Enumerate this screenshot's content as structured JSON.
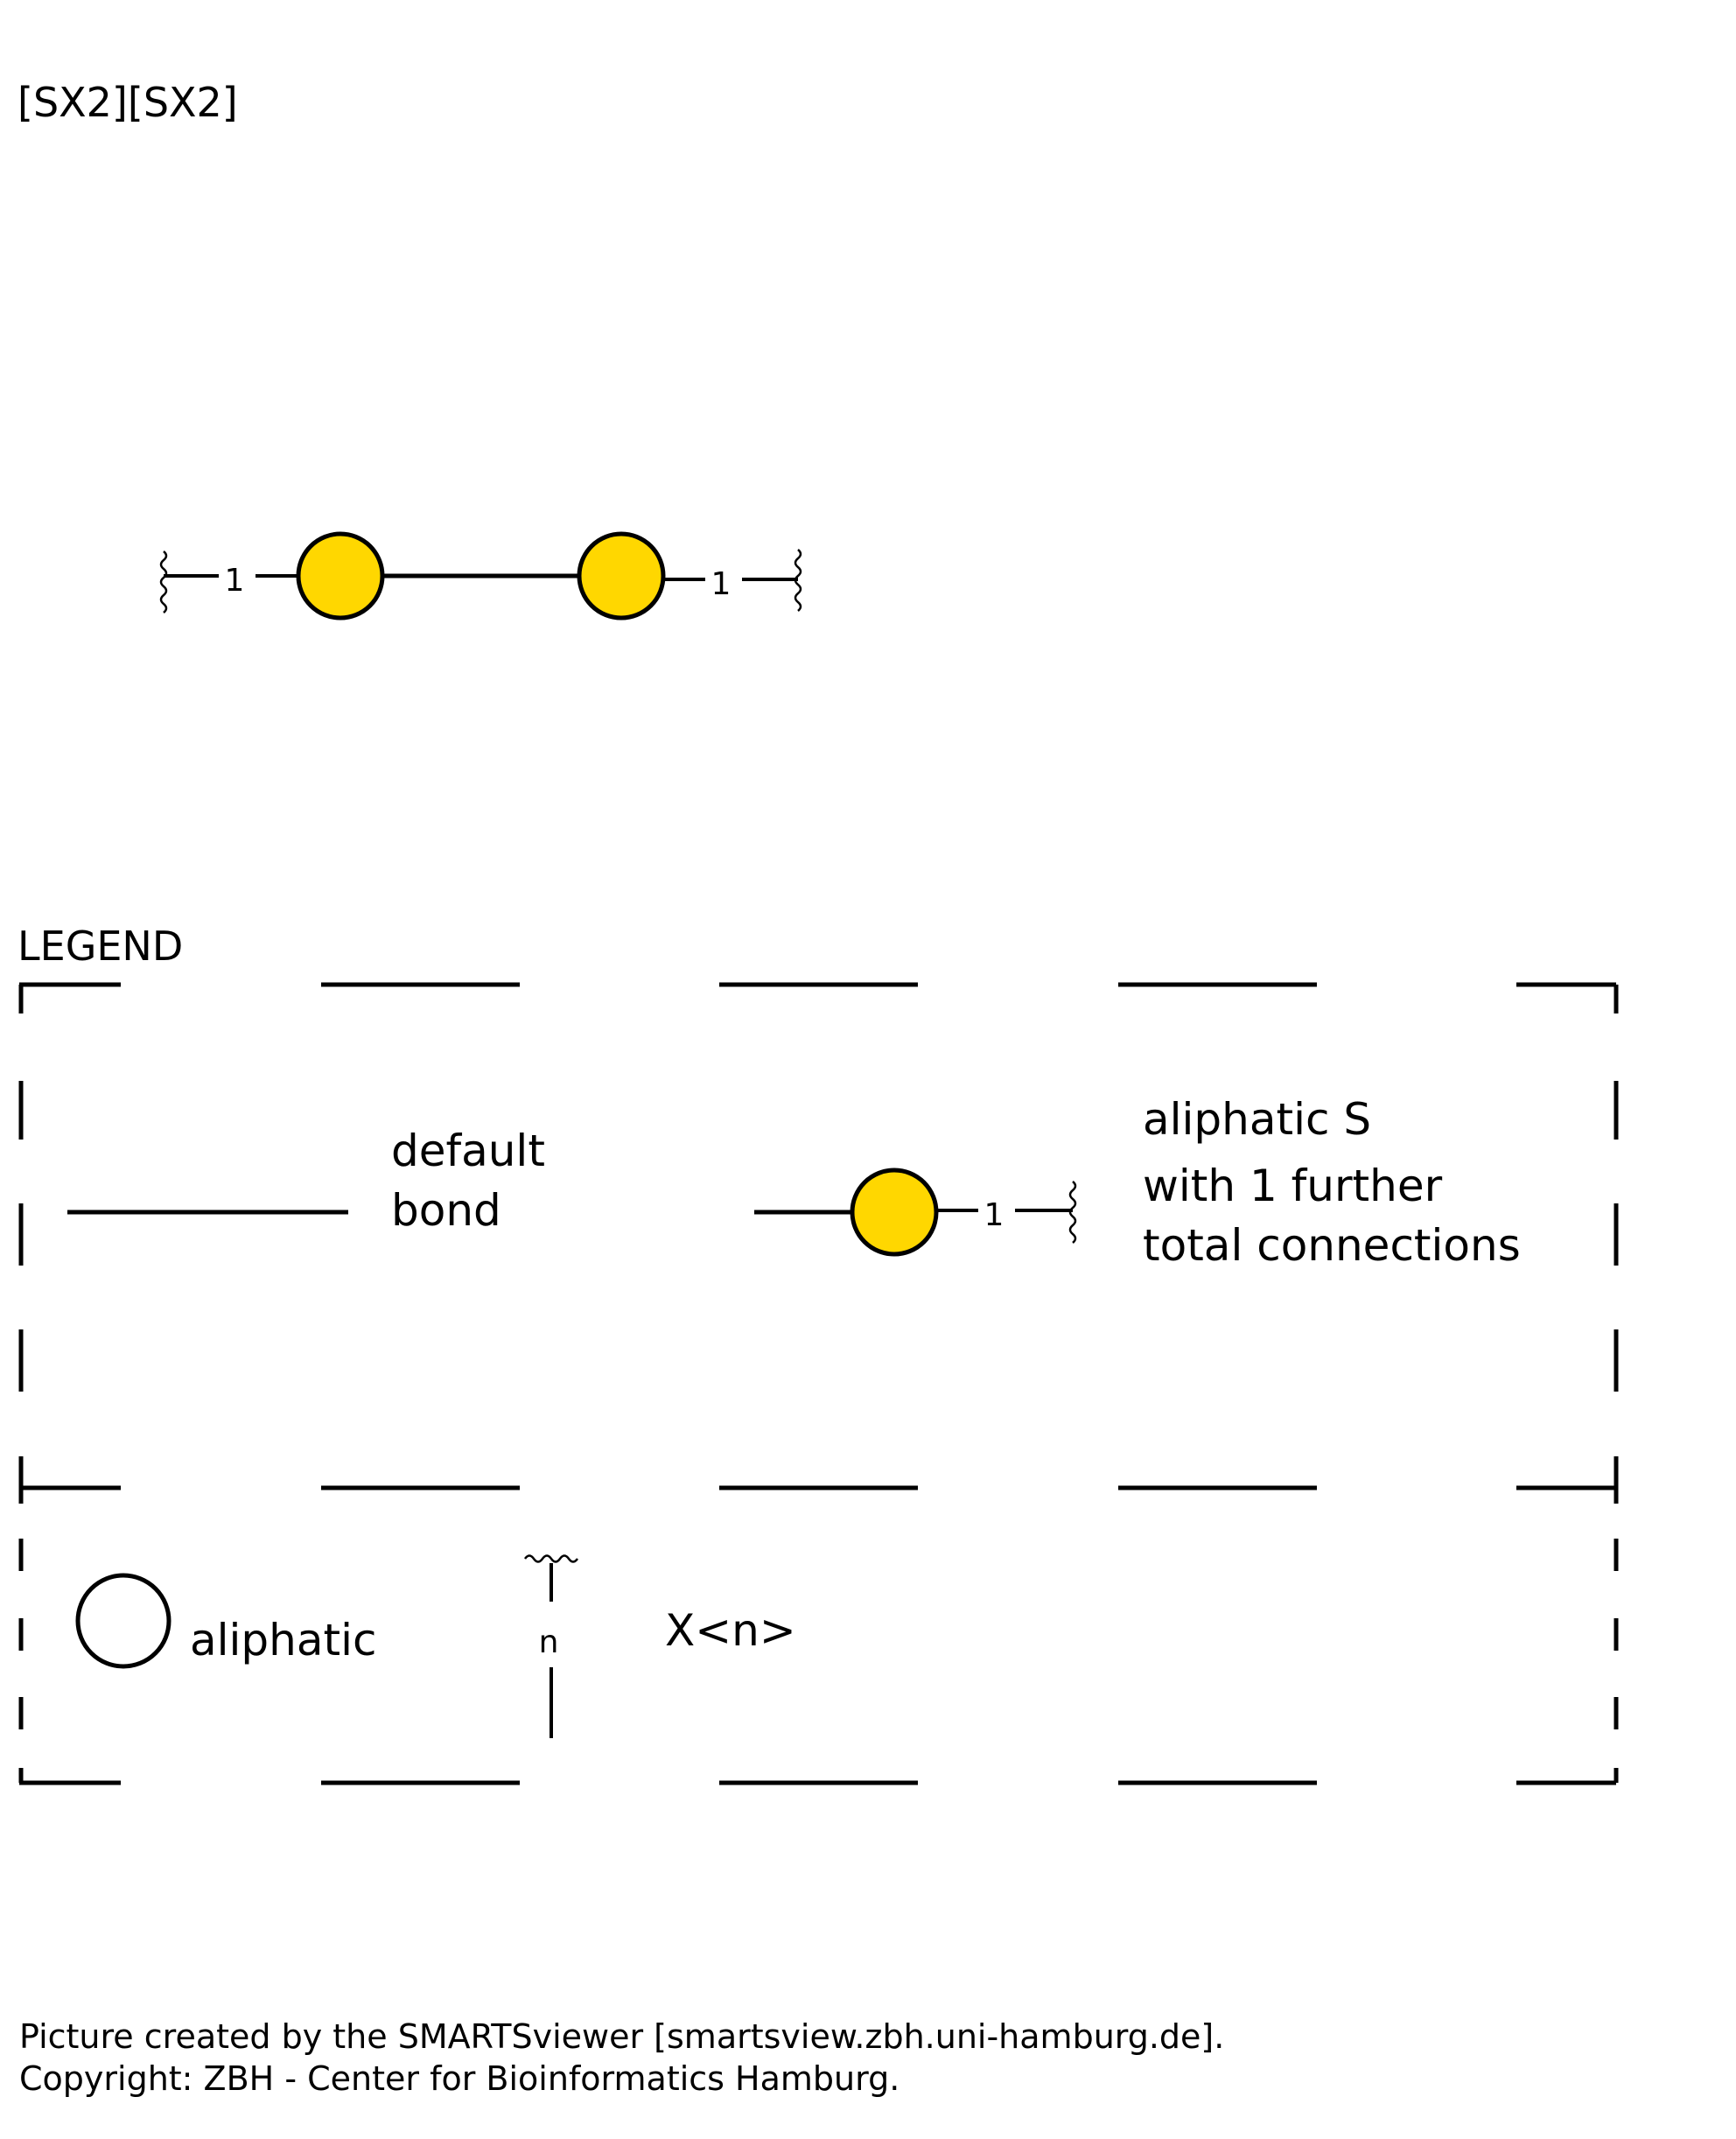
{
  "smarts": "[SX2][SX2]",
  "colors": {
    "sulfur": "#FFD700",
    "stroke": "#000000",
    "background": "#FFFFFF"
  },
  "molecule": {
    "atoms": [
      {
        "element": "S",
        "aliphatic": true,
        "connections": "1"
      },
      {
        "element": "S",
        "aliphatic": true,
        "connections": "1"
      }
    ],
    "bond": "default"
  },
  "legend": {
    "title": "LEGEND",
    "default_bond": {
      "line1": "default",
      "line2": "bond"
    },
    "atom_entry": {
      "line1": "aliphatic S",
      "line2": "with 1 further",
      "line3": "total connections",
      "count": "1"
    },
    "aliphatic": {
      "label": "aliphatic"
    },
    "x_n": {
      "label": "X<n>",
      "symbol": "n"
    }
  },
  "footer": {
    "line1": "Picture created by the SMARTSviewer [smartsview.zbh.uni-hamburg.de].",
    "line2": "Copyright: ZBH - Center for Bioinformatics Hamburg."
  }
}
